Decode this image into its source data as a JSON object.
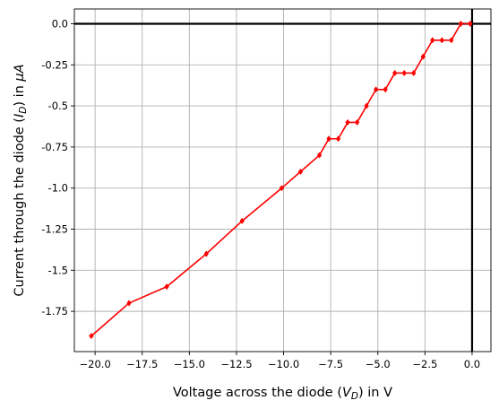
{
  "chart_data": {
    "type": "line",
    "xlabel": {
      "prefix": "Voltage across the diode (",
      "var": "V",
      "sub": "D",
      "suffix": ") in V"
    },
    "ylabel": {
      "prefix": "Current through the diode (",
      "var": "I",
      "sub": "D",
      "mid": ") in ",
      "unit_greek": "μ",
      "unit_var": "A"
    },
    "xlim": [
      -21.1,
      1.0
    ],
    "ylim": [
      -1.995,
      0.09
    ],
    "x_ticks": [
      -20.0,
      -17.5,
      -15.0,
      -12.5,
      -10.0,
      -7.5,
      -5.0,
      -2.5,
      0.0
    ],
    "x_tick_labels": [
      "−20.0",
      "−17.5",
      "−15.0",
      "−12.5",
      "−10.0",
      "−7.5",
      "−5.0",
      "−2.5",
      "0.0"
    ],
    "y_ticks": [
      0.0,
      -0.25,
      -0.5,
      -0.75,
      -1.0,
      -1.25,
      -1.5,
      -1.75
    ],
    "y_tick_labels": [
      "0.0",
      "-0.25",
      "-0.5",
      "-0.75",
      "-1.0",
      "-1.25",
      "-1.5",
      "-1.75"
    ],
    "grid": true,
    "reference_lines": {
      "x": 0,
      "y": 0,
      "color": "#000000"
    },
    "series": [
      {
        "color": "#ff0000",
        "marker": "diamond",
        "points": [
          [
            -20.2,
            -1.9
          ],
          [
            -18.2,
            -1.7
          ],
          [
            -16.2,
            -1.6
          ],
          [
            -14.1,
            -1.4
          ],
          [
            -12.2,
            -1.2
          ],
          [
            -10.1,
            -1.0
          ],
          [
            -9.1,
            -0.9
          ],
          [
            -8.1,
            -0.8
          ],
          [
            -7.6,
            -0.7
          ],
          [
            -7.1,
            -0.7
          ],
          [
            -6.6,
            -0.6
          ],
          [
            -6.1,
            -0.6
          ],
          [
            -5.6,
            -0.5
          ],
          [
            -5.1,
            -0.4
          ],
          [
            -4.6,
            -0.4
          ],
          [
            -4.1,
            -0.3
          ],
          [
            -3.6,
            -0.3
          ],
          [
            -3.1,
            -0.3
          ],
          [
            -2.6,
            -0.2
          ],
          [
            -2.1,
            -0.1
          ],
          [
            -1.6,
            -0.1
          ],
          [
            -1.1,
            -0.1
          ],
          [
            -0.6,
            0.0
          ],
          [
            -0.1,
            0.0
          ]
        ]
      }
    ]
  }
}
